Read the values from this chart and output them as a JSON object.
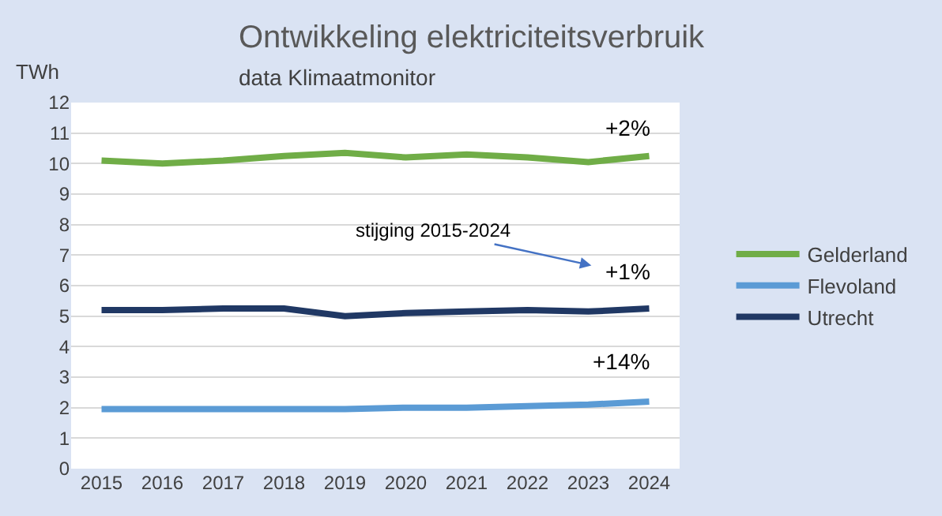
{
  "chart_data": {
    "type": "line",
    "title": "Ontwikkeling elektriciteitsverbruik",
    "subtitle": "data Klimaatmonitor",
    "ylabel": "TWh",
    "categories": [
      "2015",
      "2016",
      "2017",
      "2018",
      "2019",
      "2020",
      "2021",
      "2022",
      "2023",
      "2024"
    ],
    "series": [
      {
        "name": "Gelderland",
        "color": "#70ad47",
        "values": [
          10.1,
          10.0,
          10.1,
          10.25,
          10.35,
          10.2,
          10.3,
          10.2,
          10.05,
          10.25
        ]
      },
      {
        "name": "Flevoland",
        "color": "#5b9bd5",
        "values": [
          1.95,
          1.95,
          1.95,
          1.95,
          1.95,
          2.0,
          2.0,
          2.05,
          2.1,
          2.2
        ]
      },
      {
        "name": "Utrecht",
        "color": "#203864",
        "values": [
          5.2,
          5.2,
          5.25,
          5.25,
          5.0,
          5.1,
          5.15,
          5.2,
          5.15,
          5.25
        ]
      }
    ],
    "ylim": [
      0,
      12
    ],
    "yticks": [
      0,
      1,
      2,
      3,
      4,
      5,
      6,
      7,
      8,
      9,
      10,
      11,
      12
    ],
    "grid": "y",
    "legend": "right",
    "line_style": "solid",
    "marker": "none",
    "annotations": [
      "+2%",
      "stijging 2015-2024",
      "+1%",
      "+14%"
    ]
  }
}
